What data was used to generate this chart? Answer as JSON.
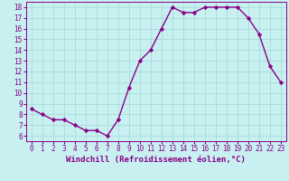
{
  "x": [
    0,
    1,
    2,
    3,
    4,
    5,
    6,
    7,
    8,
    9,
    10,
    11,
    12,
    13,
    14,
    15,
    16,
    17,
    18,
    19,
    20,
    21,
    22,
    23
  ],
  "y": [
    8.5,
    8.0,
    7.5,
    7.5,
    7.0,
    6.5,
    6.5,
    6.0,
    7.5,
    10.5,
    13.0,
    14.0,
    16.0,
    18.0,
    17.5,
    17.5,
    18.0,
    18.0,
    18.0,
    18.0,
    17.0,
    15.5,
    12.5,
    11.0
  ],
  "xlim": [
    -0.5,
    23.5
  ],
  "ylim": [
    5.5,
    18.5
  ],
  "yticks": [
    6,
    7,
    8,
    9,
    10,
    11,
    12,
    13,
    14,
    15,
    16,
    17,
    18
  ],
  "xticks": [
    0,
    1,
    2,
    3,
    4,
    5,
    6,
    7,
    8,
    9,
    10,
    11,
    12,
    13,
    14,
    15,
    16,
    17,
    18,
    19,
    20,
    21,
    22,
    23
  ],
  "xlabel": "Windchill (Refroidissement éolien,°C)",
  "line_color": "#880088",
  "marker": "D",
  "marker_size": 2.2,
  "bg_color": "#c8f0f0",
  "grid_color": "#a8dada",
  "tick_label_color": "#880088",
  "axis_label_color": "#880088",
  "tick_fontsize": 5.5,
  "xlabel_fontsize": 6.5,
  "line_width": 1.0
}
